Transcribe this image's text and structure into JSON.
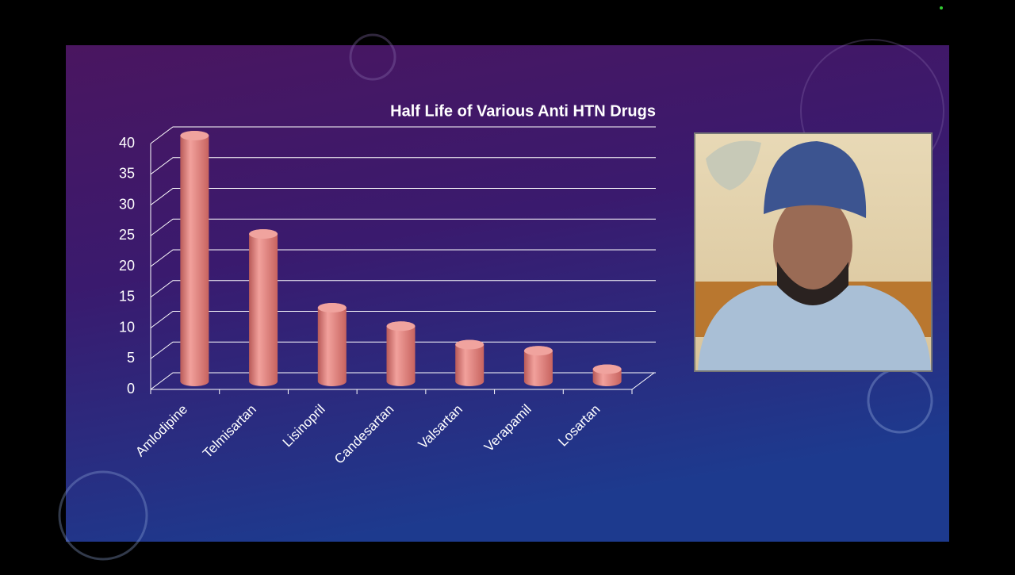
{
  "chart_data": {
    "type": "bar",
    "title": "Half Life of Various Anti HTN Drugs",
    "categories": [
      "Amlodipine",
      "Telmisartan",
      "Lisinopril",
      "Candesartan",
      "Valsartan",
      "Verapamil",
      "Losartan"
    ],
    "values": [
      40,
      24,
      12,
      9,
      6,
      5,
      2
    ],
    "color": "#e8847f",
    "ylim": [
      0,
      40
    ],
    "yticks": [
      0,
      5,
      10,
      15,
      20,
      25,
      30,
      35,
      40
    ],
    "grid": true
  }
}
